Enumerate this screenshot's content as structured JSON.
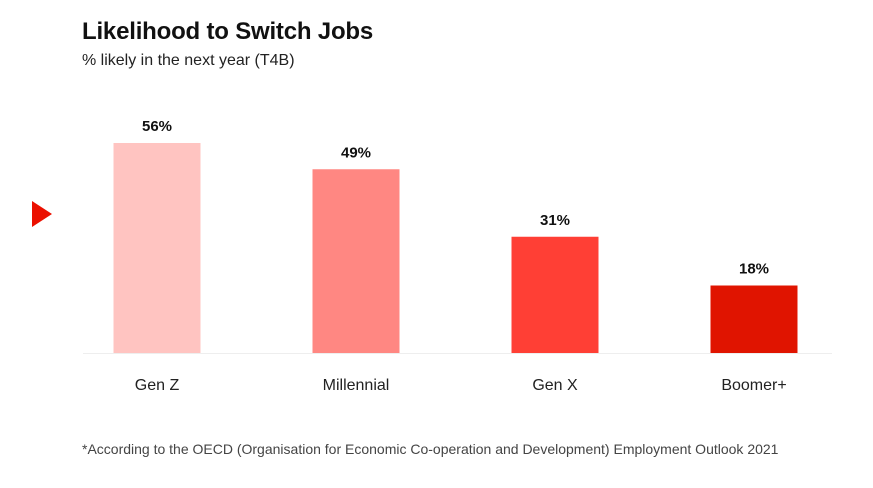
{
  "title": "Likelihood to Switch Jobs",
  "subtitle": "% likely in the next year (T4B)",
  "footnote": "*According to the OECD (Organisation for Economic Co-operation and Development) Employment Outlook 2021",
  "marker_icon": "play-triangle-icon",
  "colors": {
    "accent": "#EB1000",
    "baseline": "#EEEEEE"
  },
  "chart_data": {
    "type": "bar",
    "categories": [
      "Gen Z",
      "Millennial",
      "Gen X",
      "Boomer+"
    ],
    "values": [
      56,
      49,
      31,
      18
    ],
    "data_labels": [
      "56%",
      "49%",
      "31%",
      "18%"
    ],
    "colors": [
      "#FFC4C1",
      "#FF8782",
      "#FF3F35",
      "#E01400"
    ],
    "title": "Likelihood to Switch Jobs",
    "subtitle": "% likely in the next year (T4B)",
    "xlabel": "",
    "ylabel": "",
    "ylim": [
      0,
      56
    ],
    "grid": false,
    "legend": "none"
  }
}
